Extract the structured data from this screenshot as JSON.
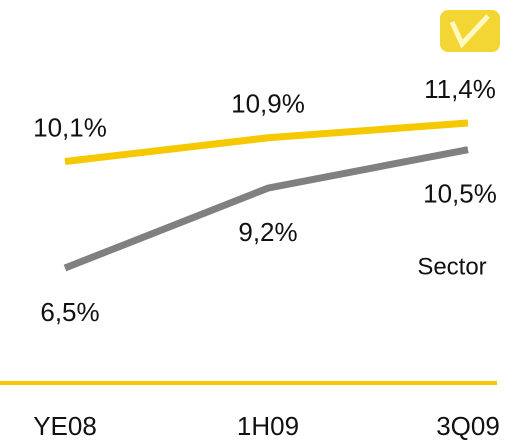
{
  "chart_data": {
    "type": "line",
    "categories": [
      "YE08",
      "1H09",
      "3Q09"
    ],
    "series": [
      {
        "color": "#f5c800",
        "values": [
          10.1,
          10.9,
          11.4
        ],
        "value_labels": [
          "10,1%",
          "10,9%",
          "11,4%"
        ]
      },
      {
        "name": "Sector",
        "color": "#808080",
        "values": [
          6.5,
          9.2,
          10.5
        ],
        "value_labels": [
          "6,5%",
          "9,2%",
          "10,5%"
        ]
      }
    ]
  }
}
